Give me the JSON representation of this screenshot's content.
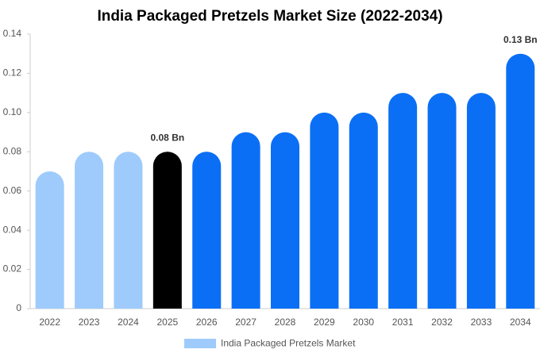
{
  "chart_data": {
    "type": "bar",
    "title": "India Packaged Pretzels Market Size (2022-2034)",
    "categories": [
      "2022",
      "2023",
      "2024",
      "2025",
      "2026",
      "2027",
      "2028",
      "2029",
      "2030",
      "2031",
      "2032",
      "2033",
      "2034"
    ],
    "series": [
      {
        "name": "India Packaged Pretzels Market",
        "color": "#9ecbfb",
        "values": [
          0.07,
          0.08,
          0.08,
          0.08,
          0.08,
          0.09,
          0.09,
          0.1,
          0.1,
          0.11,
          0.11,
          0.11,
          0.13
        ],
        "bar_colors": [
          "#9ecbfb",
          "#9ecbfb",
          "#9ecbfb",
          "#000000",
          "#0a6ff5",
          "#0a6ff5",
          "#0a6ff5",
          "#0a6ff5",
          "#0a6ff5",
          "#0a6ff5",
          "#0a6ff5",
          "#0a6ff5",
          "#0a6ff5"
        ],
        "value_labels": [
          null,
          null,
          null,
          "0.08 Bn",
          null,
          null,
          null,
          null,
          null,
          null,
          null,
          null,
          "0.13 Bn"
        ]
      }
    ],
    "ylim": [
      0,
      0.14
    ],
    "yticks": [
      0,
      0.02,
      0.04,
      0.06,
      0.08,
      {
        "value": 0.1,
        "label": "0.10"
      },
      0.12,
      0.14
    ],
    "grid": false
  }
}
